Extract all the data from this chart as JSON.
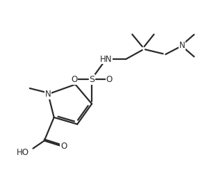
{
  "bg_color": "#ffffff",
  "line_color": "#2a2a2a",
  "line_width": 1.6,
  "font_size": 8.5,
  "fig_width": 2.95,
  "fig_height": 2.82,
  "dpi": 100,
  "xlim": [
    0,
    10
  ],
  "ylim": [
    0,
    10
  ]
}
